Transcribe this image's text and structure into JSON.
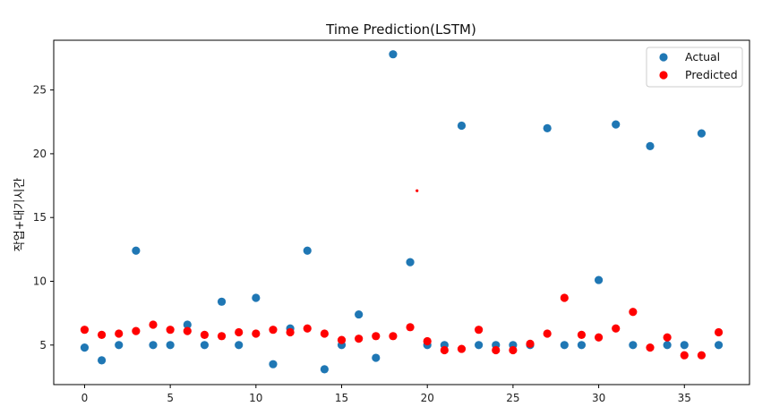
{
  "chart_data": {
    "type": "scatter",
    "title": "Time Prediction(LSTM)",
    "xlabel": "",
    "ylabel": "작업+대기시간",
    "xlim": [
      -1.8,
      38.8
    ],
    "ylim": [
      1.9,
      28.9
    ],
    "xticks": [
      0,
      5,
      10,
      15,
      20,
      25,
      30,
      35
    ],
    "yticks": [
      5,
      10,
      15,
      20,
      25
    ],
    "grid": false,
    "legend_position": "upper right",
    "series": [
      {
        "name": "Actual",
        "color": "#1f77b4",
        "x": [
          0,
          1,
          2,
          3,
          4,
          5,
          6,
          7,
          8,
          9,
          10,
          11,
          12,
          13,
          14,
          15,
          16,
          17,
          18,
          19,
          20,
          21,
          22,
          23,
          24,
          25,
          26,
          27,
          28,
          29,
          30,
          31,
          32,
          33,
          34,
          35,
          36,
          37
        ],
        "y": [
          4.8,
          3.8,
          5.0,
          12.4,
          5.0,
          5.0,
          6.6,
          5.0,
          8.4,
          5.0,
          8.7,
          3.5,
          6.3,
          12.4,
          3.1,
          5.0,
          7.4,
          4.0,
          27.8,
          11.5,
          5.0,
          5.0,
          22.2,
          5.0,
          5.0,
          5.0,
          5.0,
          22.0,
          5.0,
          5.0,
          10.1,
          22.3,
          5.0,
          20.6,
          5.0,
          5.0,
          21.6,
          5.0
        ]
      },
      {
        "name": "Predicted",
        "color": "#ff0000",
        "x": [
          0,
          1,
          2,
          3,
          4,
          5,
          6,
          7,
          8,
          9,
          10,
          11,
          12,
          13,
          14,
          15,
          16,
          17,
          18,
          19,
          20,
          21,
          22,
          23,
          24,
          25,
          26,
          27,
          28,
          29,
          30,
          31,
          32,
          33,
          34,
          35,
          36,
          37
        ],
        "y": [
          6.2,
          5.8,
          5.9,
          6.1,
          6.6,
          6.2,
          6.1,
          5.8,
          5.7,
          6.0,
          5.9,
          6.2,
          6.0,
          6.3,
          5.9,
          5.4,
          5.5,
          5.7,
          5.7,
          6.4,
          5.3,
          4.6,
          4.7,
          6.2,
          4.6,
          4.6,
          5.1,
          5.9,
          8.7,
          5.8,
          5.6,
          6.3,
          7.6,
          4.8,
          5.6,
          4.2,
          4.2,
          6.0
        ]
      }
    ],
    "annotations": [
      {
        "x": 19.4,
        "y": 17.1,
        "color": "#ff0000",
        "marker": "small-dot"
      }
    ]
  }
}
